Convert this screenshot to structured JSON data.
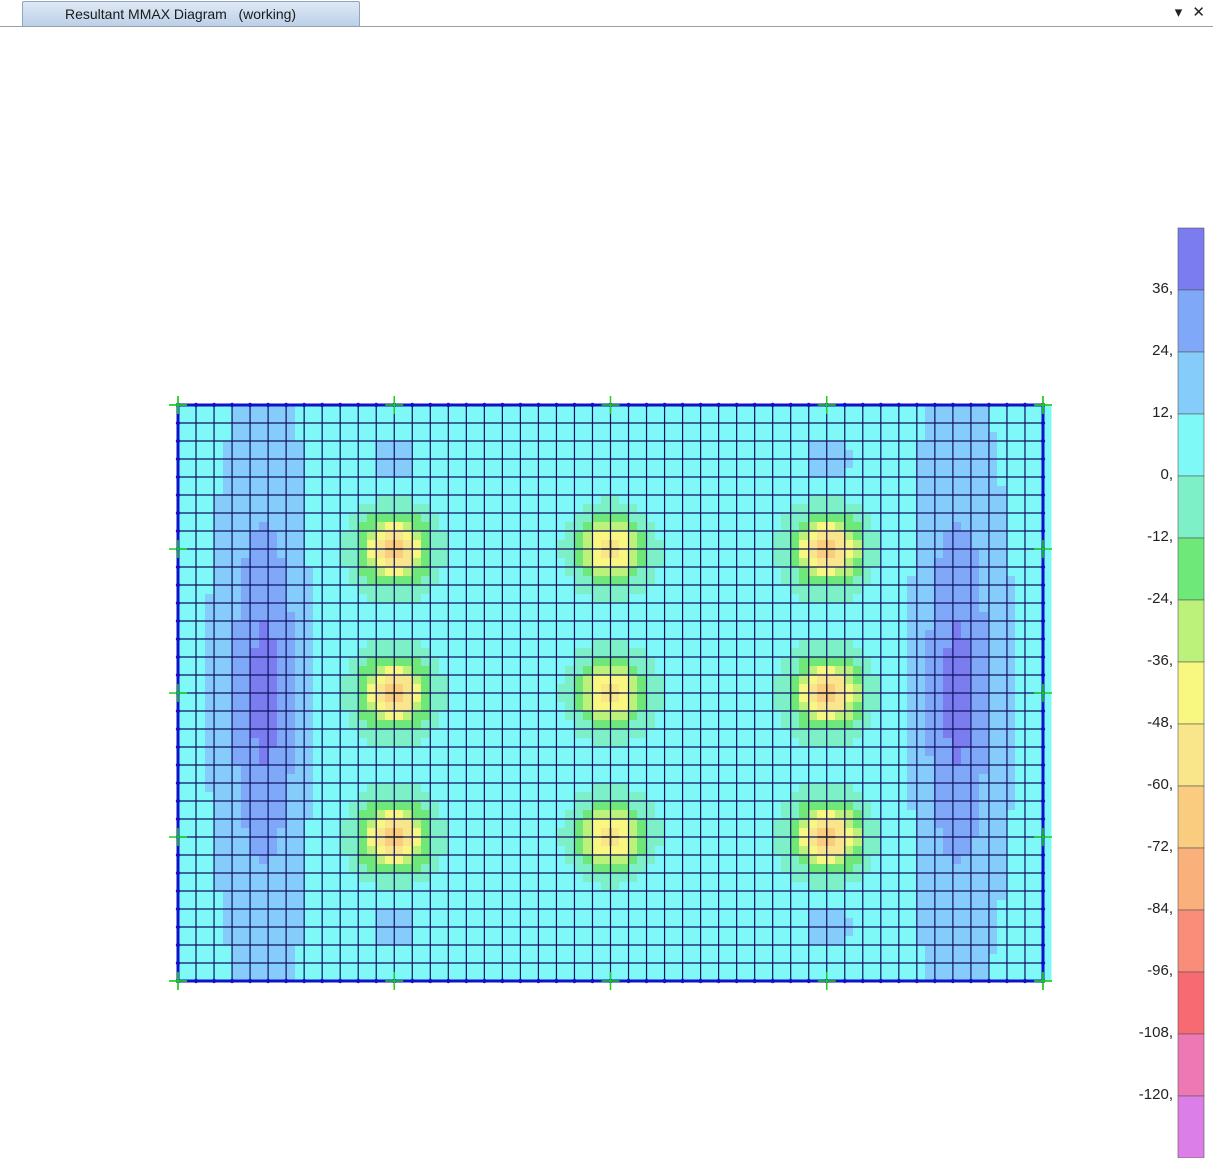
{
  "window": {
    "tab_title": "Resultant MMAX Diagram   (working)",
    "dropdown_icon": "chevron-down-icon",
    "close_icon": "close-icon",
    "dropdown_glyph": "▾",
    "close_glyph": "✕"
  },
  "legend": {
    "labels": [
      "36,",
      "24,",
      "12,",
      "0,",
      "-12,",
      "-24,",
      "-36,",
      "-48,",
      "-60,",
      "-72,",
      "-84,",
      "-96,",
      "-108,",
      "-120,"
    ],
    "colors": [
      "#7b7cf0",
      "#7fa8f8",
      "#86ccfb",
      "#7ff8f8",
      "#7ef0c8",
      "#6ee878",
      "#bdf27a",
      "#f8f880",
      "#f9e68a",
      "#f9cc80",
      "#fab07a",
      "#fa8c7a",
      "#f86a72",
      "#ee78b4",
      "#dc7ee8"
    ]
  },
  "model": {
    "frame_color": "#1010c8",
    "support_color": "#22cc22"
  }
}
